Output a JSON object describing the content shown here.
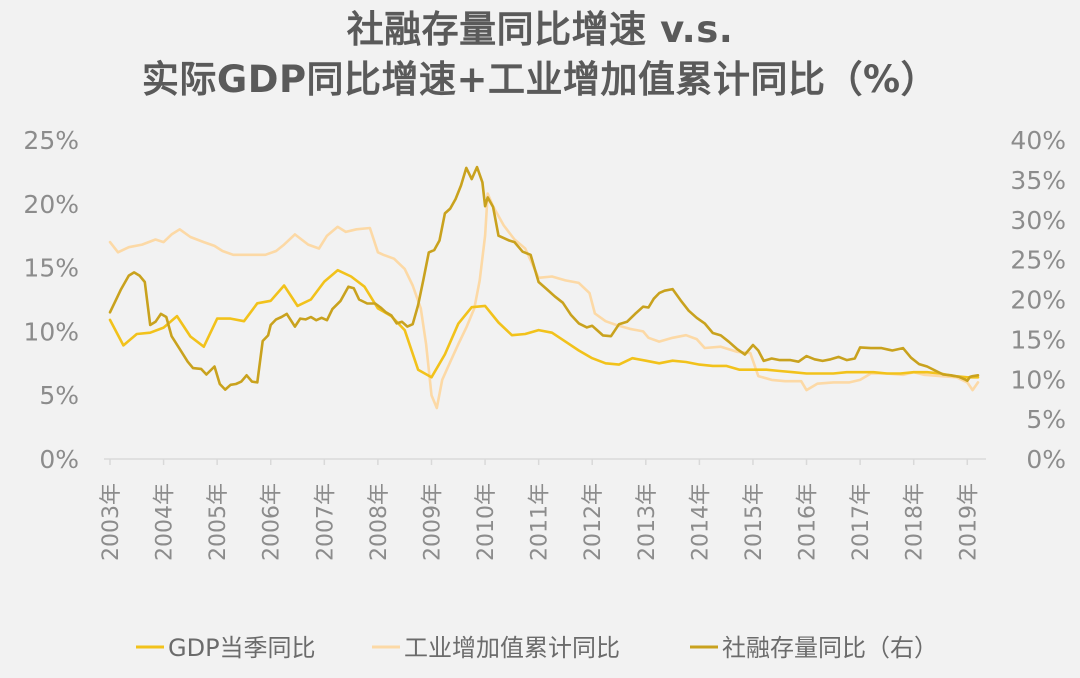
{
  "title_line1": "社融存量同比增速 v.s.",
  "title_line2": "实际GDP同比增速+工业增加值累计同比（%）",
  "chart_data": {
    "type": "line",
    "title": "社融存量同比增速 v.s. 实际GDP同比增速+工业增加值累计同比（%）",
    "x_ticks": [
      "2003年",
      "2004年",
      "2005年",
      "2006年",
      "2007年",
      "2008年",
      "2009年",
      "2010年",
      "2011年",
      "2012年",
      "2013年",
      "2014年",
      "2015年",
      "2016年",
      "2017年",
      "2018年",
      "2019年"
    ],
    "x_range": [
      2003,
      2019.2
    ],
    "y_left": {
      "ticks": [
        "0%",
        "5%",
        "10%",
        "15%",
        "20%",
        "25%"
      ],
      "range": [
        0,
        25
      ]
    },
    "y_right": {
      "ticks": [
        "0%",
        "5%",
        "10%",
        "15%",
        "20%",
        "25%",
        "30%",
        "35%",
        "40%"
      ],
      "range": [
        0,
        40
      ]
    },
    "legend_position": "bottom",
    "grid": false,
    "series": [
      {
        "name": "GDP当季同比",
        "axis": "left",
        "color": "#f2c21b",
        "x": [
          2003.0,
          2003.25,
          2003.5,
          2003.75,
          2004.0,
          2004.25,
          2004.5,
          2004.75,
          2005.0,
          2005.25,
          2005.5,
          2005.75,
          2006.0,
          2006.25,
          2006.5,
          2006.75,
          2007.0,
          2007.25,
          2007.5,
          2007.75,
          2008.0,
          2008.25,
          2008.5,
          2008.75,
          2009.0,
          2009.25,
          2009.5,
          2009.75,
          2010.0,
          2010.25,
          2010.5,
          2010.75,
          2011.0,
          2011.25,
          2011.5,
          2011.75,
          2012.0,
          2012.25,
          2012.5,
          2012.75,
          2013.0,
          2013.25,
          2013.5,
          2013.75,
          2014.0,
          2014.25,
          2014.5,
          2014.75,
          2015.0,
          2015.25,
          2015.5,
          2015.75,
          2016.0,
          2016.25,
          2016.5,
          2016.75,
          2017.0,
          2017.25,
          2017.5,
          2017.75,
          2018.0,
          2018.25,
          2018.5,
          2018.75,
          2019.0,
          2019.2
        ],
        "values": [
          10.9,
          8.9,
          9.8,
          9.9,
          10.3,
          11.2,
          9.6,
          8.8,
          11.0,
          11.0,
          10.8,
          12.2,
          12.4,
          13.6,
          12.0,
          12.5,
          13.9,
          14.8,
          14.3,
          13.5,
          11.8,
          11.2,
          10.1,
          7.0,
          6.4,
          8.2,
          10.6,
          11.9,
          12.0,
          10.7,
          9.7,
          9.8,
          10.1,
          9.9,
          9.2,
          8.5,
          7.9,
          7.5,
          7.4,
          7.9,
          7.7,
          7.5,
          7.7,
          7.6,
          7.4,
          7.3,
          7.3,
          7.0,
          7.0,
          7.0,
          6.9,
          6.8,
          6.7,
          6.7,
          6.7,
          6.8,
          6.8,
          6.8,
          6.7,
          6.7,
          6.8,
          6.8,
          6.7,
          6.5,
          6.4,
          6.4
        ]
      },
      {
        "name": "工业增加值累计同比",
        "axis": "left",
        "color": "#fcd9a6",
        "x": [
          2003.0,
          2003.15,
          2003.35,
          2003.6,
          2003.85,
          2004.0,
          2004.15,
          2004.3,
          2004.5,
          2004.75,
          2004.95,
          2005.1,
          2005.3,
          2005.6,
          2005.9,
          2006.1,
          2006.25,
          2006.45,
          2006.7,
          2006.9,
          2007.05,
          2007.25,
          2007.4,
          2007.6,
          2007.85,
          2008.0,
          2008.1,
          2008.3,
          2008.5,
          2008.65,
          2008.8,
          2008.9,
          2009.0,
          2009.1,
          2009.2,
          2009.35,
          2009.5,
          2009.65,
          2009.8,
          2009.9,
          2010.0,
          2010.05,
          2010.15,
          2010.35,
          2010.55,
          2010.75,
          2011.0,
          2011.25,
          2011.5,
          2011.75,
          2011.95,
          2012.05,
          2012.25,
          2012.45,
          2012.7,
          2012.95,
          2013.05,
          2013.25,
          2013.5,
          2013.75,
          2013.95,
          2014.1,
          2014.4,
          2014.7,
          2014.95,
          2015.1,
          2015.35,
          2015.6,
          2015.9,
          2016.0,
          2016.2,
          2016.5,
          2016.8,
          2017.0,
          2017.2,
          2017.5,
          2017.8,
          2018.0,
          2018.2,
          2018.5,
          2018.8,
          2019.0,
          2019.1,
          2019.2
        ],
        "values": [
          17.0,
          16.2,
          16.6,
          16.8,
          17.2,
          17.0,
          17.6,
          18.0,
          17.4,
          17.0,
          16.7,
          16.3,
          16.0,
          16.0,
          16.0,
          16.3,
          16.8,
          17.6,
          16.8,
          16.5,
          17.5,
          18.2,
          17.8,
          18.0,
          18.1,
          16.2,
          16.0,
          15.7,
          14.9,
          13.6,
          11.8,
          9.0,
          5.0,
          4.0,
          6.2,
          7.6,
          9.0,
          10.3,
          11.8,
          14.0,
          17.5,
          20.8,
          19.8,
          18.3,
          17.2,
          16.5,
          14.2,
          14.3,
          14.0,
          13.8,
          13.0,
          11.4,
          10.8,
          10.5,
          10.2,
          10.0,
          9.5,
          9.2,
          9.5,
          9.7,
          9.4,
          8.7,
          8.8,
          8.4,
          8.3,
          6.5,
          6.2,
          6.1,
          6.1,
          5.4,
          5.9,
          6.0,
          6.0,
          6.2,
          6.7,
          6.7,
          6.6,
          6.8,
          6.6,
          6.5,
          6.4,
          6.0,
          5.4,
          6.0
        ]
      },
      {
        "name": "社融存量同比（右）",
        "axis": "right",
        "color": "#c9a21e",
        "x": [
          2003.0,
          2003.1,
          2003.2,
          2003.35,
          2003.45,
          2003.55,
          2003.65,
          2003.75,
          2003.85,
          2003.95,
          2004.05,
          2004.15,
          2004.3,
          2004.45,
          2004.55,
          2004.7,
          2004.8,
          2004.95,
          2005.05,
          2005.15,
          2005.25,
          2005.35,
          2005.45,
          2005.55,
          2005.65,
          2005.75,
          2005.85,
          2005.95,
          2006.0,
          2006.1,
          2006.2,
          2006.3,
          2006.45,
          2006.55,
          2006.65,
          2006.75,
          2006.85,
          2006.95,
          2007.05,
          2007.15,
          2007.3,
          2007.45,
          2007.55,
          2007.65,
          2007.8,
          2007.95,
          2008.05,
          2008.15,
          2008.25,
          2008.35,
          2008.45,
          2008.55,
          2008.65,
          2008.75,
          2008.85,
          2008.95,
          2009.05,
          2009.15,
          2009.25,
          2009.35,
          2009.45,
          2009.55,
          2009.65,
          2009.75,
          2009.85,
          2009.95,
          2010.0,
          2010.05,
          2010.15,
          2010.25,
          2010.35,
          2010.45,
          2010.55,
          2010.7,
          2010.85,
          2011.0,
          2011.15,
          2011.3,
          2011.45,
          2011.6,
          2011.75,
          2011.9,
          2012.0,
          2012.1,
          2012.2,
          2012.35,
          2012.5,
          2012.65,
          2012.8,
          2012.95,
          2013.05,
          2013.15,
          2013.25,
          2013.35,
          2013.5,
          2013.65,
          2013.8,
          2013.95,
          2014.1,
          2014.25,
          2014.4,
          2014.55,
          2014.7,
          2014.85,
          2015.0,
          2015.1,
          2015.2,
          2015.35,
          2015.5,
          2015.7,
          2015.85,
          2016.0,
          2016.15,
          2016.3,
          2016.45,
          2016.6,
          2016.75,
          2016.9,
          2017.0,
          2017.2,
          2017.4,
          2017.6,
          2017.8,
          2017.95,
          2018.1,
          2018.25,
          2018.4,
          2018.55,
          2018.7,
          2018.85,
          2018.95,
          2019.0,
          2019.05,
          2019.1,
          2019.2
        ],
        "values": [
          18.4,
          19.8,
          21.2,
          23.0,
          23.4,
          23.0,
          22.2,
          16.8,
          17.2,
          18.2,
          17.8,
          15.4,
          13.8,
          12.2,
          11.4,
          11.3,
          10.6,
          11.6,
          9.4,
          8.7,
          9.3,
          9.4,
          9.7,
          10.5,
          9.7,
          9.6,
          14.8,
          15.5,
          16.8,
          17.5,
          17.8,
          18.2,
          16.6,
          17.6,
          17.5,
          17.8,
          17.4,
          17.7,
          17.4,
          18.8,
          19.8,
          21.6,
          21.4,
          20.0,
          19.5,
          19.5,
          19.0,
          18.4,
          18.0,
          17.0,
          17.2,
          16.6,
          16.9,
          19.3,
          22.5,
          25.9,
          26.2,
          27.4,
          30.8,
          31.4,
          32.6,
          34.3,
          36.5,
          35.1,
          36.6,
          34.7,
          31.7,
          32.8,
          31.6,
          28.0,
          27.7,
          27.4,
          27.2,
          26.0,
          25.6,
          22.2,
          21.3,
          20.4,
          19.6,
          18.1,
          17.0,
          16.5,
          16.7,
          16.1,
          15.5,
          15.4,
          16.9,
          17.2,
          18.2,
          19.1,
          19.0,
          20.1,
          20.8,
          21.1,
          21.3,
          19.9,
          18.6,
          17.7,
          17.0,
          15.8,
          15.5,
          14.7,
          13.8,
          13.1,
          14.3,
          13.6,
          12.3,
          12.6,
          12.4,
          12.4,
          12.2,
          12.9,
          12.5,
          12.3,
          12.5,
          12.8,
          12.4,
          12.6,
          14.0,
          13.9,
          13.9,
          13.6,
          13.9,
          12.7,
          11.9,
          11.6,
          11.1,
          10.6,
          10.5,
          10.3,
          10.0,
          9.8,
          10.3,
          10.4,
          10.5
        ]
      }
    ]
  }
}
